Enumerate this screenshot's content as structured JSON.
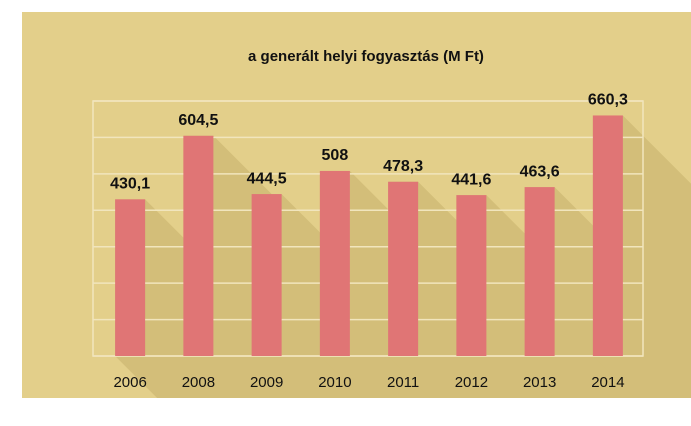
{
  "chart_data": {
    "type": "bar",
    "title": "a generált helyi fogyasztás (M Ft)",
    "categories": [
      "2006",
      "2008",
      "2009",
      "2010",
      "2011",
      "2012",
      "2013",
      "2014"
    ],
    "values": [
      430.1,
      604.5,
      444.5,
      508,
      478.3,
      441.6,
      463.6,
      660.3
    ],
    "value_labels": [
      "430,1",
      "604,5",
      "444,5",
      "508",
      "478,3",
      "441,6",
      "463,6",
      "660,3"
    ],
    "color": "#e07575",
    "ylim": [
      0,
      700
    ],
    "yticks": [
      0,
      100,
      200,
      300,
      400,
      500,
      600,
      700
    ],
    "grid": true
  }
}
